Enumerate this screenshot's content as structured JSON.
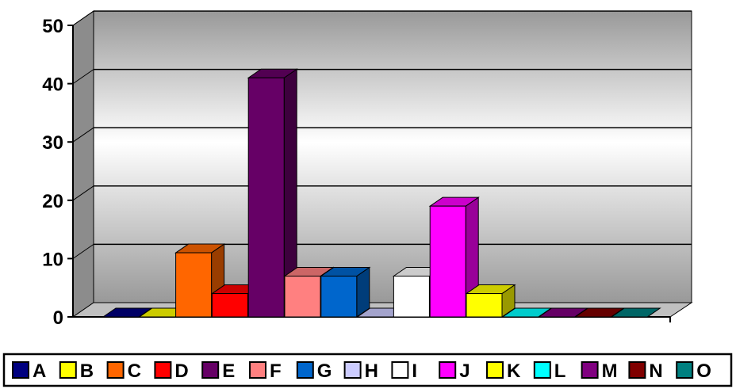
{
  "chart_data": {
    "type": "bar",
    "title": "",
    "xlabel": "",
    "ylabel": "",
    "ylim": [
      0,
      50
    ],
    "yticks": [
      0,
      10,
      20,
      30,
      40,
      50
    ],
    "grid": true,
    "legend": "bottom",
    "categories": [
      "A",
      "B",
      "C",
      "D",
      "E",
      "F",
      "G",
      "H",
      "I",
      "J",
      "K",
      "L",
      "M",
      "N",
      "O"
    ],
    "values": [
      0,
      0,
      11,
      4,
      41,
      7,
      7,
      0,
      7,
      19,
      4,
      0,
      0,
      0,
      0
    ],
    "colors": [
      "#000080",
      "#ffff00",
      "#ff6600",
      "#ff0000",
      "#660066",
      "#ff8080",
      "#0066cc",
      "#ccccff",
      "#ffffff",
      "#ff00ff",
      "#ffff00",
      "#00ffff",
      "#800080",
      "#800000",
      "#008080"
    ]
  }
}
